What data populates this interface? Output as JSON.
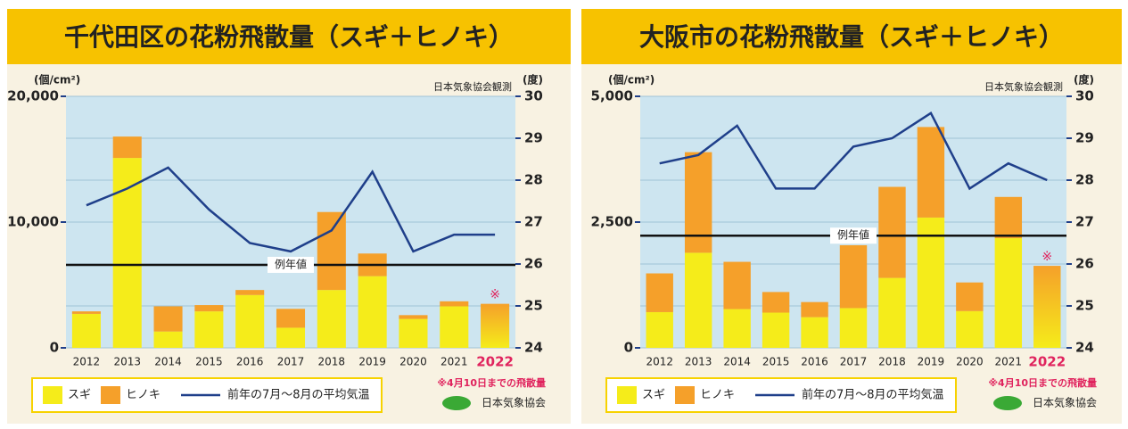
{
  "chart_data": [
    {
      "type": "bar",
      "title": "千代田区の花粉飛散量（スギ＋ヒノキ）",
      "y_label": "(個/cm²)",
      "y2_label": "(度)",
      "source": "日本気象協会観測",
      "categories": [
        "2012",
        "2013",
        "2014",
        "2015",
        "2016",
        "2017",
        "2018",
        "2019",
        "2020",
        "2021",
        "2022"
      ],
      "series": [
        {
          "name": "スギ",
          "color": "#f5ec1a",
          "values": [
            2700,
            15100,
            1300,
            2900,
            4200,
            1600,
            4600,
            5700,
            2300,
            3300,
            3500
          ]
        },
        {
          "name": "ヒノキ",
          "color": "#f5a02a",
          "values": [
            200,
            1700,
            2000,
            500,
            400,
            1500,
            6200,
            1800,
            300,
            400,
            null
          ]
        },
        {
          "name": "前年の7月～8月の平均気温",
          "color": "#1f3f8a",
          "axis": "y2",
          "values": [
            27.4,
            27.8,
            28.3,
            27.3,
            26.5,
            26.3,
            26.8,
            28.2,
            26.3,
            26.7,
            26.7
          ]
        }
      ],
      "normal": {
        "label": "例年値",
        "value": 6600
      },
      "mark": "※",
      "note": "※4月10日までの飛散量",
      "logo": "日本気象協会",
      "ylim": [
        0,
        20000
      ],
      "yticks": [
        0,
        {
          "value": 10000,
          "label": "10,000"
        },
        {
          "value": 20000,
          "label": "20,000"
        }
      ],
      "y2lim": [
        24,
        30
      ],
      "y2ticks": [
        24,
        25,
        26,
        27,
        28,
        29,
        30
      ],
      "grid": true
    },
    {
      "type": "bar",
      "title": "大阪市の花粉飛散量（スギ＋ヒノキ）",
      "y_label": "(個/cm²)",
      "y2_label": "(度)",
      "source": "日本気象協会観測",
      "categories": [
        "2012",
        "2013",
        "2014",
        "2015",
        "2016",
        "2017",
        "2018",
        "2019",
        "2020",
        "2021",
        "2022"
      ],
      "series": [
        {
          "name": "スギ",
          "color": "#f5ec1a",
          "values": [
            710,
            1890,
            770,
            700,
            610,
            790,
            1390,
            2590,
            730,
            2180,
            1630
          ]
        },
        {
          "name": "ヒノキ",
          "color": "#f5a02a",
          "values": [
            770,
            2000,
            940,
            410,
            300,
            1250,
            1810,
            1800,
            570,
            820,
            null
          ]
        },
        {
          "name": "前年の7月～8月の平均気温",
          "color": "#1f3f8a",
          "axis": "y2",
          "values": [
            28.4,
            28.6,
            29.3,
            27.8,
            27.8,
            28.8,
            29.0,
            29.6,
            27.8,
            28.4,
            28.0
          ]
        }
      ],
      "normal": {
        "label": "例年値",
        "value": 2230
      },
      "mark": "※",
      "note": "※4月10日までの飛散量",
      "logo": "日本気象協会",
      "ylim": [
        0,
        5000
      ],
      "yticks": [
        0,
        {
          "value": 2500,
          "label": "2,500"
        },
        {
          "value": 5000,
          "label": "5,000"
        }
      ],
      "y2lim": [
        24,
        30
      ],
      "y2ticks": [
        24,
        25,
        26,
        27,
        28,
        29,
        30
      ],
      "grid": true
    }
  ]
}
